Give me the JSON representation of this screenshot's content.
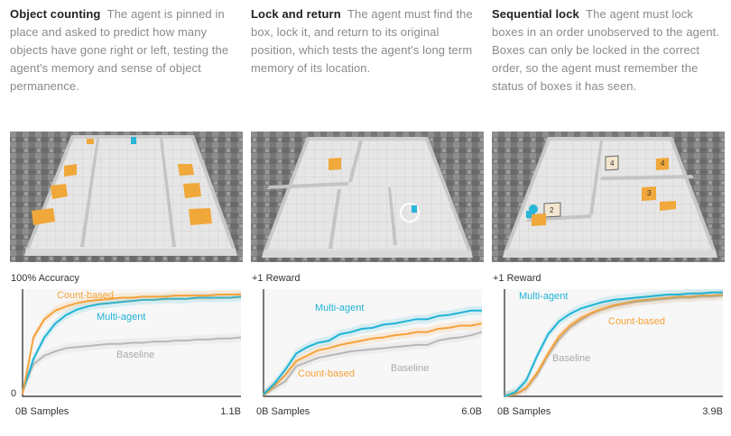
{
  "panels": [
    {
      "title": "Object counting",
      "description": "The agent is pinned in place and asked to predict how many objects have gone right or left, testing the agent's memory and sense of object permanence.",
      "metric": "100% Accuracy",
      "zero": "0",
      "x_start": "0B Samples",
      "x_end": "1.1B",
      "series": [
        {
          "name": "Count-based",
          "color": "#f5a23a",
          "values": [
            0.02,
            0.55,
            0.72,
            0.8,
            0.84,
            0.87,
            0.89,
            0.9,
            0.91,
            0.92,
            0.92,
            0.93,
            0.93,
            0.93,
            0.94,
            0.94,
            0.94,
            0.94,
            0.95,
            0.95,
            0.95
          ]
        },
        {
          "name": "Multi-agent",
          "color": "#1fb3d6",
          "values": [
            0.04,
            0.35,
            0.55,
            0.68,
            0.76,
            0.81,
            0.84,
            0.86,
            0.87,
            0.88,
            0.89,
            0.9,
            0.9,
            0.91,
            0.91,
            0.91,
            0.92,
            0.92,
            0.92,
            0.92,
            0.93
          ]
        },
        {
          "name": "Baseline",
          "color": "#b7b7b7",
          "values": [
            0.05,
            0.3,
            0.38,
            0.42,
            0.45,
            0.46,
            0.47,
            0.48,
            0.49,
            0.49,
            0.5,
            0.5,
            0.51,
            0.51,
            0.52,
            0.52,
            0.53,
            0.53,
            0.54,
            0.54,
            0.55
          ]
        }
      ]
    },
    {
      "title": "Lock and return",
      "description": "The agent must find the box, lock it, and return to its original position, which tests the agent's long term memory of its location.",
      "metric": "+1 Reward",
      "zero": "",
      "x_start": "0B Samples",
      "x_end": "6.0B",
      "series": [
        {
          "name": "Multi-agent",
          "color": "#1fb3d6",
          "values": [
            0.02,
            0.12,
            0.25,
            0.4,
            0.46,
            0.5,
            0.52,
            0.58,
            0.6,
            0.63,
            0.64,
            0.67,
            0.68,
            0.7,
            0.72,
            0.72,
            0.75,
            0.76,
            0.78,
            0.8,
            0.8
          ]
        },
        {
          "name": "Count-based",
          "color": "#f5a23a",
          "values": [
            0.01,
            0.1,
            0.2,
            0.33,
            0.38,
            0.43,
            0.45,
            0.48,
            0.5,
            0.52,
            0.54,
            0.55,
            0.57,
            0.58,
            0.6,
            0.6,
            0.63,
            0.64,
            0.66,
            0.66,
            0.68
          ]
        },
        {
          "name": "Baseline",
          "color": "#b7b7b7",
          "values": [
            0.01,
            0.08,
            0.14,
            0.28,
            0.32,
            0.36,
            0.38,
            0.4,
            0.42,
            0.43,
            0.44,
            0.45,
            0.46,
            0.47,
            0.48,
            0.48,
            0.52,
            0.54,
            0.55,
            0.57,
            0.6
          ]
        }
      ]
    },
    {
      "title": "Sequential lock",
      "description": "The agent must lock boxes in an order unobserved to the agent. Boxes can only be locked in the correct order, so the agent must remember the status of boxes it has seen.",
      "metric": "+1 Reward",
      "zero": "",
      "x_start": "0B Samples",
      "x_end": "3.9B",
      "series": [
        {
          "name": "Multi-agent",
          "color": "#1fb3d6",
          "values": [
            0.0,
            0.04,
            0.15,
            0.38,
            0.58,
            0.7,
            0.77,
            0.82,
            0.85,
            0.88,
            0.9,
            0.91,
            0.92,
            0.93,
            0.94,
            0.95,
            0.95,
            0.96,
            0.96,
            0.97,
            0.97
          ]
        },
        {
          "name": "Count-based",
          "color": "#f5a23a",
          "values": [
            0.0,
            0.02,
            0.08,
            0.22,
            0.4,
            0.56,
            0.66,
            0.73,
            0.78,
            0.82,
            0.85,
            0.87,
            0.89,
            0.9,
            0.91,
            0.92,
            0.93,
            0.93,
            0.94,
            0.94,
            0.95
          ]
        },
        {
          "name": "Baseline",
          "color": "#b7b7b7",
          "values": [
            0.0,
            0.02,
            0.07,
            0.2,
            0.38,
            0.53,
            0.64,
            0.71,
            0.77,
            0.81,
            0.84,
            0.86,
            0.88,
            0.89,
            0.9,
            0.91,
            0.92,
            0.92,
            0.93,
            0.93,
            0.94
          ]
        }
      ]
    }
  ],
  "scene2_labels": [
    "1",
    "2",
    "3",
    "4"
  ]
}
